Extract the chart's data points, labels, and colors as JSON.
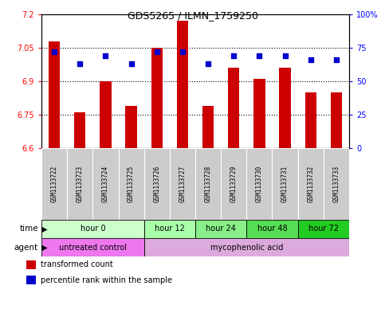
{
  "title": "GDS5265 / ILMN_1759250",
  "samples": [
    "GSM1133722",
    "GSM1133723",
    "GSM1133724",
    "GSM1133725",
    "GSM1133726",
    "GSM1133727",
    "GSM1133728",
    "GSM1133729",
    "GSM1133730",
    "GSM1133731",
    "GSM1133732",
    "GSM1133733"
  ],
  "bar_values": [
    7.08,
    6.76,
    6.9,
    6.79,
    7.05,
    7.17,
    6.79,
    6.96,
    6.91,
    6.96,
    6.85,
    6.85
  ],
  "percentile_values": [
    72,
    63,
    69,
    63,
    72,
    72,
    63,
    69,
    69,
    69,
    66,
    66
  ],
  "ylim_left": [
    6.6,
    7.2
  ],
  "ylim_right": [
    0,
    100
  ],
  "yticks_left": [
    6.6,
    6.75,
    6.9,
    7.05,
    7.2
  ],
  "yticks_right": [
    0,
    25,
    50,
    75,
    100
  ],
  "ytick_labels_left": [
    "6.6",
    "6.75",
    "6.9",
    "7.05",
    "7.2"
  ],
  "ytick_labels_right": [
    "0",
    "25",
    "50",
    "75",
    "100%"
  ],
  "bar_color": "#cc0000",
  "dot_color": "#0000cc",
  "bar_bottom": 6.6,
  "grid_values": [
    6.75,
    6.9,
    7.05
  ],
  "time_groups": [
    {
      "label": "hour 0",
      "start": 0,
      "end": 3,
      "color": "#ccffcc"
    },
    {
      "label": "hour 12",
      "start": 4,
      "end": 5,
      "color": "#aaffaa"
    },
    {
      "label": "hour 24",
      "start": 6,
      "end": 7,
      "color": "#88ee88"
    },
    {
      "label": "hour 48",
      "start": 8,
      "end": 9,
      "color": "#55dd55"
    },
    {
      "label": "hour 72",
      "start": 10,
      "end": 11,
      "color": "#22cc22"
    }
  ],
  "agent_groups": [
    {
      "label": "untreated control",
      "start": 0,
      "end": 3,
      "color": "#ee77ee"
    },
    {
      "label": "mycophenolic acid",
      "start": 4,
      "end": 11,
      "color": "#ddaadd"
    }
  ],
  "legend_bar_color": "#cc0000",
  "legend_dot_color": "#0000cc",
  "legend_bar_label": "transformed count",
  "legend_dot_label": "percentile rank within the sample",
  "bg_color": "#ffffff",
  "sample_box_color": "#cccccc",
  "plot_bg_color": "#ffffff"
}
